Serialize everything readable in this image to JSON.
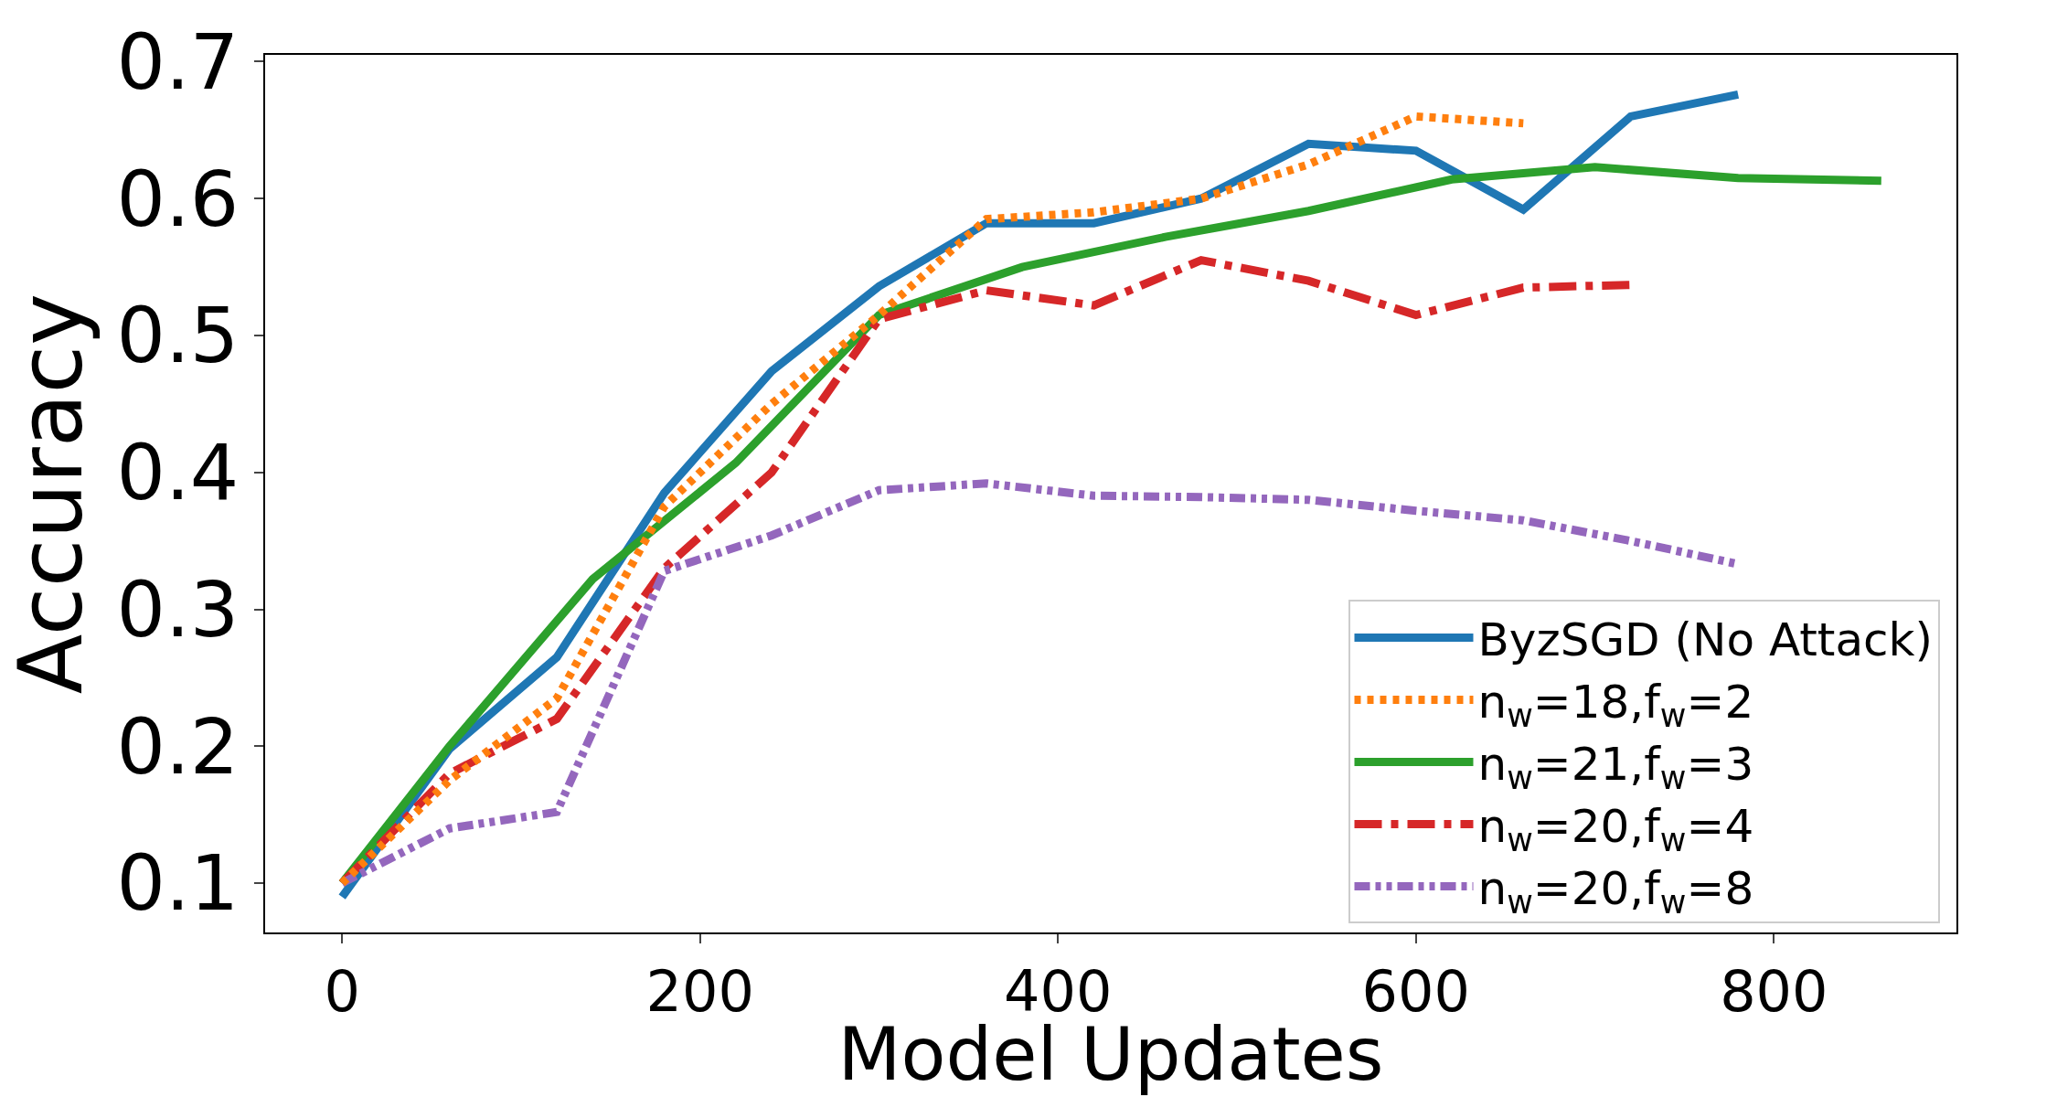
{
  "chart_data": {
    "type": "line",
    "xlabel": "Model Updates",
    "ylabel": "Accuracy",
    "xlim": [
      -43,
      902
    ],
    "ylim": [
      0.064,
      0.705
    ],
    "xticks": [
      0,
      200,
      400,
      600,
      800
    ],
    "yticks": [
      0.1,
      0.2,
      0.3,
      0.4,
      0.5,
      0.6,
      0.7
    ],
    "legend": "bottom right",
    "series": [
      {
        "name": "ByzSGD (No Attack)",
        "color": "#1f77b4",
        "line_style": "solid",
        "x": [
          0,
          60,
          120,
          180,
          240,
          300,
          360,
          420,
          480,
          540,
          600,
          660,
          720,
          780
        ],
        "values": [
          0.09,
          0.198,
          0.265,
          0.385,
          0.474,
          0.536,
          0.582,
          0.582,
          0.6,
          0.64,
          0.635,
          0.592,
          0.66,
          0.676
        ]
      },
      {
        "name": "n$_{w}$=18,f$_{w}$=2",
        "color": "#ff7f0e",
        "line_style": "dotted",
        "x": [
          0,
          60,
          120,
          180,
          240,
          300,
          360,
          420,
          480,
          540,
          600,
          660
        ],
        "values": [
          0.1,
          0.175,
          0.235,
          0.375,
          0.45,
          0.515,
          0.585,
          0.59,
          0.6,
          0.625,
          0.66,
          0.655
        ]
      },
      {
        "name": "n$_{w}$=21,f$_{w}$=3",
        "color": "#2ca02c",
        "line_style": "solid",
        "x": [
          0,
          60,
          140,
          220,
          300,
          380,
          460,
          540,
          620,
          700,
          780,
          860
        ],
        "values": [
          0.1,
          0.2,
          0.322,
          0.407,
          0.515,
          0.55,
          0.572,
          0.591,
          0.614,
          0.623,
          0.615,
          0.613
        ]
      },
      {
        "name": "n$_{w}$=20,f$_{w}$=4",
        "color": "#d62728",
        "line_style": "dashdot",
        "x": [
          0,
          60,
          120,
          180,
          240,
          300,
          360,
          420,
          480,
          540,
          600,
          660,
          720
        ],
        "values": [
          0.1,
          0.18,
          0.22,
          0.33,
          0.4,
          0.512,
          0.533,
          0.522,
          0.555,
          0.54,
          0.515,
          0.535,
          0.537
        ]
      },
      {
        "name": "n$_{w}$=20,f$_{w}$=8",
        "color": "#9467bd",
        "line_style": "dashdotdot",
        "x": [
          0,
          60,
          120,
          180,
          240,
          300,
          360,
          420,
          480,
          540,
          600,
          660,
          720,
          780
        ],
        "values": [
          0.1,
          0.14,
          0.152,
          0.328,
          0.354,
          0.387,
          0.392,
          0.383,
          0.382,
          0.38,
          0.372,
          0.365,
          0.35,
          0.333
        ]
      }
    ]
  }
}
